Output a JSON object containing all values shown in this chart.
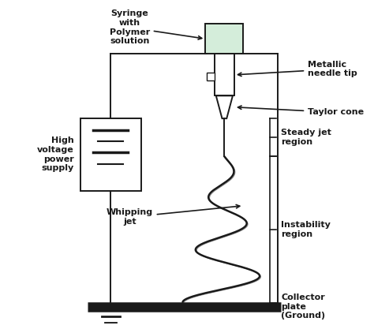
{
  "bg_color": "#ffffff",
  "line_color": "#1a1a1a",
  "syringe_color": "#d4edda",
  "labels": {
    "syringe": "Syringe\nwith\nPolymer\nsolution",
    "needle": "Metallic\nneedle tip",
    "taylor": "Taylor cone",
    "steady": "Steady jet\nregion",
    "instability": "Instability\nregion",
    "whipping": "Whipping\njet",
    "collector": "Collector\nplate\n(Ground)",
    "hvps": "High\nvoltage\npower\nsupply"
  },
  "figsize": [
    4.74,
    4.17
  ],
  "dpi": 100
}
